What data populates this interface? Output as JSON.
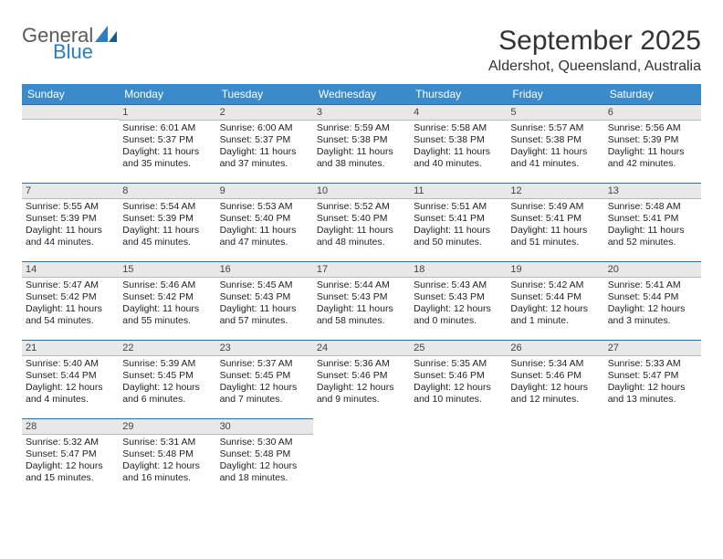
{
  "logo": {
    "text1": "General",
    "text2": "Blue",
    "color_gray": "#5a5a5a",
    "color_blue": "#2a7ec4"
  },
  "title": "September 2025",
  "location": "Aldershot, Queensland, Australia",
  "colors": {
    "header_bg": "#3b8bca",
    "header_text": "#ffffff",
    "daynum_bg": "#e8e8e8",
    "daynum_border_top": "#3a6a96",
    "body_text": "#222222"
  },
  "fonts": {
    "title_pt": 30,
    "location_pt": 16,
    "header_pt": 12,
    "daynum_pt": 11,
    "body_pt": 10.5
  },
  "day_headers": [
    "Sunday",
    "Monday",
    "Tuesday",
    "Wednesday",
    "Thursday",
    "Friday",
    "Saturday"
  ],
  "weeks": [
    [
      null,
      {
        "n": "1",
        "sunrise": "Sunrise: 6:01 AM",
        "sunset": "Sunset: 5:37 PM",
        "daylight": "Daylight: 11 hours and 35 minutes."
      },
      {
        "n": "2",
        "sunrise": "Sunrise: 6:00 AM",
        "sunset": "Sunset: 5:37 PM",
        "daylight": "Daylight: 11 hours and 37 minutes."
      },
      {
        "n": "3",
        "sunrise": "Sunrise: 5:59 AM",
        "sunset": "Sunset: 5:38 PM",
        "daylight": "Daylight: 11 hours and 38 minutes."
      },
      {
        "n": "4",
        "sunrise": "Sunrise: 5:58 AM",
        "sunset": "Sunset: 5:38 PM",
        "daylight": "Daylight: 11 hours and 40 minutes."
      },
      {
        "n": "5",
        "sunrise": "Sunrise: 5:57 AM",
        "sunset": "Sunset: 5:38 PM",
        "daylight": "Daylight: 11 hours and 41 minutes."
      },
      {
        "n": "6",
        "sunrise": "Sunrise: 5:56 AM",
        "sunset": "Sunset: 5:39 PM",
        "daylight": "Daylight: 11 hours and 42 minutes."
      }
    ],
    [
      {
        "n": "7",
        "sunrise": "Sunrise: 5:55 AM",
        "sunset": "Sunset: 5:39 PM",
        "daylight": "Daylight: 11 hours and 44 minutes."
      },
      {
        "n": "8",
        "sunrise": "Sunrise: 5:54 AM",
        "sunset": "Sunset: 5:39 PM",
        "daylight": "Daylight: 11 hours and 45 minutes."
      },
      {
        "n": "9",
        "sunrise": "Sunrise: 5:53 AM",
        "sunset": "Sunset: 5:40 PM",
        "daylight": "Daylight: 11 hours and 47 minutes."
      },
      {
        "n": "10",
        "sunrise": "Sunrise: 5:52 AM",
        "sunset": "Sunset: 5:40 PM",
        "daylight": "Daylight: 11 hours and 48 minutes."
      },
      {
        "n": "11",
        "sunrise": "Sunrise: 5:51 AM",
        "sunset": "Sunset: 5:41 PM",
        "daylight": "Daylight: 11 hours and 50 minutes."
      },
      {
        "n": "12",
        "sunrise": "Sunrise: 5:49 AM",
        "sunset": "Sunset: 5:41 PM",
        "daylight": "Daylight: 11 hours and 51 minutes."
      },
      {
        "n": "13",
        "sunrise": "Sunrise: 5:48 AM",
        "sunset": "Sunset: 5:41 PM",
        "daylight": "Daylight: 11 hours and 52 minutes."
      }
    ],
    [
      {
        "n": "14",
        "sunrise": "Sunrise: 5:47 AM",
        "sunset": "Sunset: 5:42 PM",
        "daylight": "Daylight: 11 hours and 54 minutes."
      },
      {
        "n": "15",
        "sunrise": "Sunrise: 5:46 AM",
        "sunset": "Sunset: 5:42 PM",
        "daylight": "Daylight: 11 hours and 55 minutes."
      },
      {
        "n": "16",
        "sunrise": "Sunrise: 5:45 AM",
        "sunset": "Sunset: 5:43 PM",
        "daylight": "Daylight: 11 hours and 57 minutes."
      },
      {
        "n": "17",
        "sunrise": "Sunrise: 5:44 AM",
        "sunset": "Sunset: 5:43 PM",
        "daylight": "Daylight: 11 hours and 58 minutes."
      },
      {
        "n": "18",
        "sunrise": "Sunrise: 5:43 AM",
        "sunset": "Sunset: 5:43 PM",
        "daylight": "Daylight: 12 hours and 0 minutes."
      },
      {
        "n": "19",
        "sunrise": "Sunrise: 5:42 AM",
        "sunset": "Sunset: 5:44 PM",
        "daylight": "Daylight: 12 hours and 1 minute."
      },
      {
        "n": "20",
        "sunrise": "Sunrise: 5:41 AM",
        "sunset": "Sunset: 5:44 PM",
        "daylight": "Daylight: 12 hours and 3 minutes."
      }
    ],
    [
      {
        "n": "21",
        "sunrise": "Sunrise: 5:40 AM",
        "sunset": "Sunset: 5:44 PM",
        "daylight": "Daylight: 12 hours and 4 minutes."
      },
      {
        "n": "22",
        "sunrise": "Sunrise: 5:39 AM",
        "sunset": "Sunset: 5:45 PM",
        "daylight": "Daylight: 12 hours and 6 minutes."
      },
      {
        "n": "23",
        "sunrise": "Sunrise: 5:37 AM",
        "sunset": "Sunset: 5:45 PM",
        "daylight": "Daylight: 12 hours and 7 minutes."
      },
      {
        "n": "24",
        "sunrise": "Sunrise: 5:36 AM",
        "sunset": "Sunset: 5:46 PM",
        "daylight": "Daylight: 12 hours and 9 minutes."
      },
      {
        "n": "25",
        "sunrise": "Sunrise: 5:35 AM",
        "sunset": "Sunset: 5:46 PM",
        "daylight": "Daylight: 12 hours and 10 minutes."
      },
      {
        "n": "26",
        "sunrise": "Sunrise: 5:34 AM",
        "sunset": "Sunset: 5:46 PM",
        "daylight": "Daylight: 12 hours and 12 minutes."
      },
      {
        "n": "27",
        "sunrise": "Sunrise: 5:33 AM",
        "sunset": "Sunset: 5:47 PM",
        "daylight": "Daylight: 12 hours and 13 minutes."
      }
    ],
    [
      {
        "n": "28",
        "sunrise": "Sunrise: 5:32 AM",
        "sunset": "Sunset: 5:47 PM",
        "daylight": "Daylight: 12 hours and 15 minutes."
      },
      {
        "n": "29",
        "sunrise": "Sunrise: 5:31 AM",
        "sunset": "Sunset: 5:48 PM",
        "daylight": "Daylight: 12 hours and 16 minutes."
      },
      {
        "n": "30",
        "sunrise": "Sunrise: 5:30 AM",
        "sunset": "Sunset: 5:48 PM",
        "daylight": "Daylight: 12 hours and 18 minutes."
      },
      null,
      null,
      null,
      null
    ]
  ]
}
